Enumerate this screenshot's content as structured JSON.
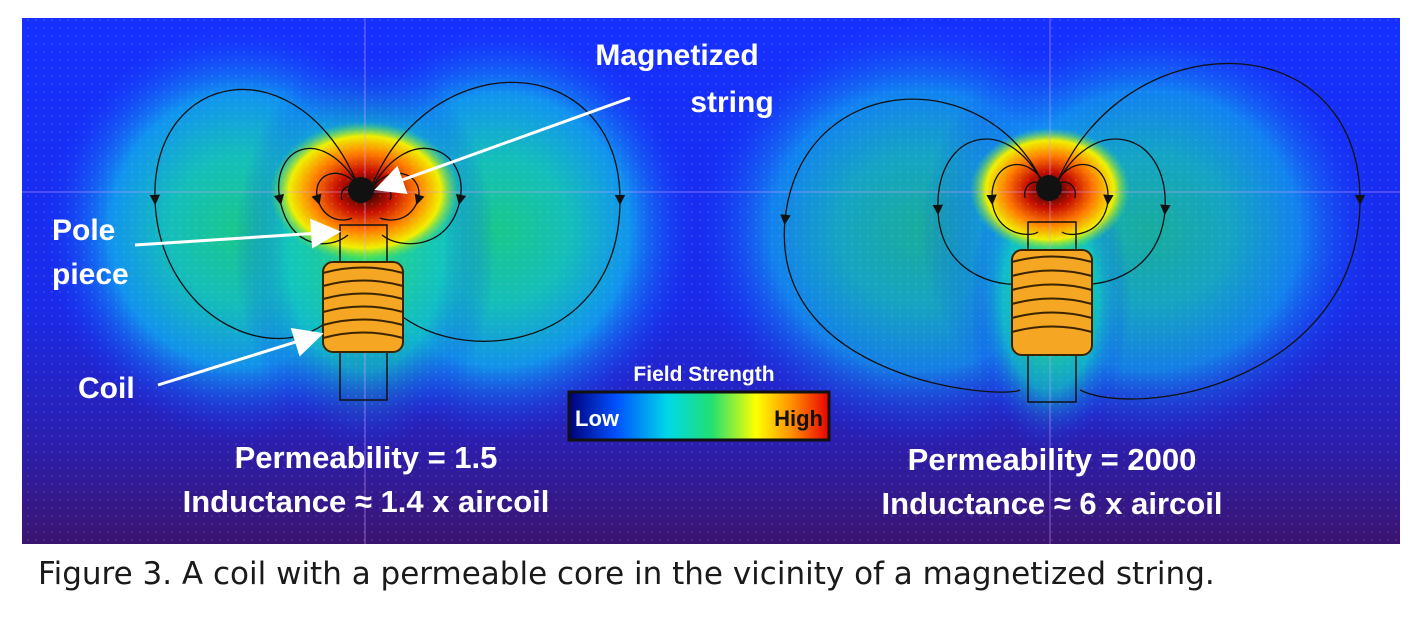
{
  "labels": {
    "magnetized_string_line1": "Magnetized",
    "magnetized_string_line2": "string",
    "pole_piece_line1": "Pole",
    "pole_piece_line2": "piece",
    "coil": "Coil"
  },
  "legend": {
    "title": "Field Strength",
    "low": "Low",
    "high": "High",
    "gradient_colors": [
      "#00007a",
      "#0050ff",
      "#00d8e8",
      "#22e070",
      "#ffff00",
      "#ff8c00",
      "#e80000"
    ]
  },
  "panels": [
    {
      "permeability": "Permeability = 1.5",
      "inductance": "Inductance ≈ 1.4 x aircoil"
    },
    {
      "permeability": "Permeability = 2000",
      "inductance": "Inductance ≈ 6 x aircoil"
    }
  ],
  "caption": "Figure 3. A coil with a permeable core in the vicinity of a magnetized string.",
  "colors": {
    "background_field": "#1428ff",
    "coil": "#f5a623",
    "coil_outline": "#3a2400"
  }
}
